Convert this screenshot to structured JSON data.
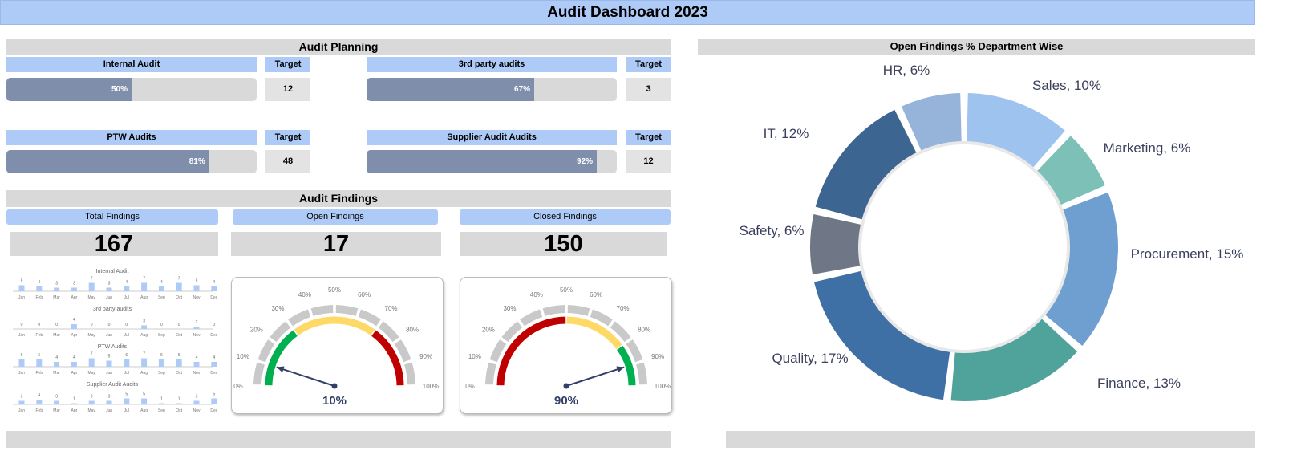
{
  "title": "Audit Dashboard 2023",
  "planning": {
    "header": "Audit Planning",
    "target_label": "Target",
    "items": [
      {
        "label": "Internal Audit",
        "percent": 50,
        "percent_label": "50%",
        "target": "12"
      },
      {
        "label": "3rd party audits",
        "percent": 67,
        "percent_label": "67%",
        "target": "3"
      },
      {
        "label": "PTW Audits",
        "percent": 81,
        "percent_label": "81%",
        "target": "48"
      },
      {
        "label": "Supplier Audit Audits",
        "percent": 92,
        "percent_label": "92%",
        "target": "12"
      }
    ]
  },
  "findings": {
    "header": "Audit Findings",
    "cards": [
      {
        "label": "Total Findings",
        "value": "167"
      },
      {
        "label": "Open Findings",
        "value": "17"
      },
      {
        "label": "Closed Findings",
        "value": "150"
      }
    ]
  },
  "chart_data": [
    {
      "type": "bar",
      "title": "Internal Audit",
      "categories": [
        "Jan",
        "Feb",
        "Mar",
        "Apr",
        "May",
        "Jun",
        "Jul",
        "Aug",
        "Sep",
        "Oct",
        "Nov",
        "Dec"
      ],
      "values": [
        5,
        4,
        3,
        3,
        7,
        3,
        4,
        7,
        4,
        7,
        5,
        4
      ]
    },
    {
      "type": "bar",
      "title": "3rd party audits",
      "categories": [
        "Jan",
        "Feb",
        "Mar",
        "Apr",
        "May",
        "Jun",
        "Jul",
        "Aug",
        "Sep",
        "Oct",
        "Nov",
        "Dec"
      ],
      "values": [
        0,
        0,
        0,
        4,
        0,
        0,
        0,
        3,
        0,
        0,
        2,
        0
      ]
    },
    {
      "type": "bar",
      "title": "PTW Audits",
      "categories": [
        "Jan",
        "Feb",
        "Mar",
        "Apr",
        "May",
        "Jun",
        "Jul",
        "Aug",
        "Sep",
        "Oct",
        "Nov",
        "Dec"
      ],
      "values": [
        6,
        6,
        4,
        4,
        7,
        5,
        6,
        7,
        6,
        6,
        4,
        4
      ]
    },
    {
      "type": "bar",
      "title": "Supplier Audit Audits",
      "categories": [
        "Jan",
        "Feb",
        "Mar",
        "Apr",
        "May",
        "Jun",
        "Jul",
        "Aug",
        "Sep",
        "Oct",
        "Nov",
        "Dec"
      ],
      "values": [
        3,
        4,
        3,
        1,
        3,
        3,
        5,
        5,
        1,
        1,
        3,
        5
      ]
    },
    {
      "type": "gauge",
      "ticks": [
        "0%",
        "10%",
        "20%",
        "30%",
        "40%",
        "50%",
        "60%",
        "70%",
        "80%",
        "90%",
        "100%"
      ],
      "value": 10,
      "value_label": "10%",
      "bands": [
        {
          "from": 0,
          "to": 30,
          "color": "#00B050"
        },
        {
          "from": 30,
          "to": 70,
          "color": "#FFD966"
        },
        {
          "from": 70,
          "to": 100,
          "color": "#C00000"
        }
      ]
    },
    {
      "type": "gauge",
      "ticks": [
        "0%",
        "10%",
        "20%",
        "30%",
        "40%",
        "50%",
        "60%",
        "70%",
        "80%",
        "90%",
        "100%"
      ],
      "value": 90,
      "value_label": "90%",
      "bands": [
        {
          "from": 0,
          "to": 50,
          "color": "#C00000"
        },
        {
          "from": 50,
          "to": 80,
          "color": "#FFD966"
        },
        {
          "from": 80,
          "to": 100,
          "color": "#00B050"
        }
      ]
    },
    {
      "type": "pie",
      "title": "Open Findings % Department Wise",
      "slices": [
        {
          "label": "Sales, 10%",
          "value": 10,
          "color": "#9DC3EE"
        },
        {
          "label": "Marketing, 6%",
          "value": 6,
          "color": "#7DC0B8"
        },
        {
          "label": "Procurement, 15%",
          "value": 15,
          "color": "#6E9FD0"
        },
        {
          "label": "Finance, 13%",
          "value": 13,
          "color": "#4FA39B"
        },
        {
          "label": "Quality, 17%",
          "value": 17,
          "color": "#3F70A5"
        },
        {
          "label": "Safety, 6%",
          "value": 6,
          "color": "#6F7685"
        },
        {
          "label": "IT, 12%",
          "value": 12,
          "color": "#3D6591"
        },
        {
          "label": "HR, 6%",
          "value": 6,
          "color": "#96B4D9"
        }
      ]
    }
  ]
}
